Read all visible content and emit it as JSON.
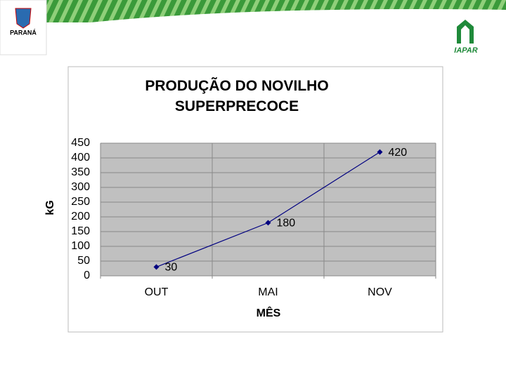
{
  "logos": {
    "left": "PARANÁ",
    "right": "IAPAR"
  },
  "chart_data": {
    "type": "line",
    "title": "PRODUÇÃO DO NOVILHO SUPERPRECOCE",
    "x_label": "MÊS",
    "y_label": "kG",
    "categories": [
      "OUT",
      "MAI",
      "NOV"
    ],
    "series": [
      {
        "name": "kG",
        "color": "#000080",
        "values": [
          30,
          180,
          420
        ]
      }
    ],
    "ylim": [
      0,
      450
    ],
    "yticks": [
      0,
      50,
      100,
      150,
      200,
      250,
      300,
      350,
      400,
      450
    ],
    "grid": true,
    "plot_background": "#c0c0c0",
    "data_labels": true
  }
}
